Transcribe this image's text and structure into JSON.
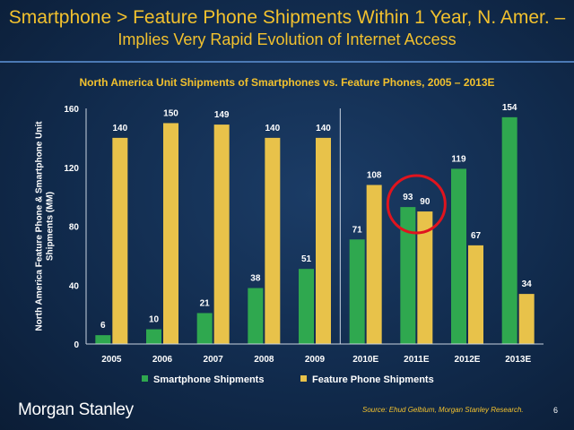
{
  "slide": {
    "title": "Smartphone > Feature Phone Shipments Within 1 Year, N. Amer. –",
    "subtitle": "Implies Very Rapid Evolution of Internet Access",
    "source": "Source: Ehud Gelblum, Morgan Stanley Research.",
    "logo": "Morgan Stanley",
    "page_number": "6"
  },
  "chart_data": {
    "type": "bar",
    "title": "North America Unit Shipments of Smartphones vs. Feature Phones, 2005 – 2013E",
    "xlabel": "",
    "ylabel": "North America Feature Phone & Smartphone Unit Shipments (MM)",
    "ylim": [
      0,
      160
    ],
    "yticks": [
      0,
      40,
      80,
      120,
      160
    ],
    "categories": [
      "2005",
      "2006",
      "2007",
      "2008",
      "2009",
      "2010E",
      "2011E",
      "2012E",
      "2013E"
    ],
    "series": [
      {
        "name": "Smartphone Shipments",
        "color": "#2fa84f",
        "values": [
          6,
          10,
          21,
          38,
          51,
          71,
          93,
          119,
          154
        ]
      },
      {
        "name": "Feature Phone Shipments",
        "color": "#e8c24a",
        "values": [
          140,
          150,
          149,
          140,
          140,
          108,
          90,
          67,
          34
        ]
      }
    ],
    "divider_after_category": "2009",
    "highlight_category": "2011E",
    "highlight_color": "#e0141e",
    "legend_position": "bottom",
    "grid": false
  }
}
